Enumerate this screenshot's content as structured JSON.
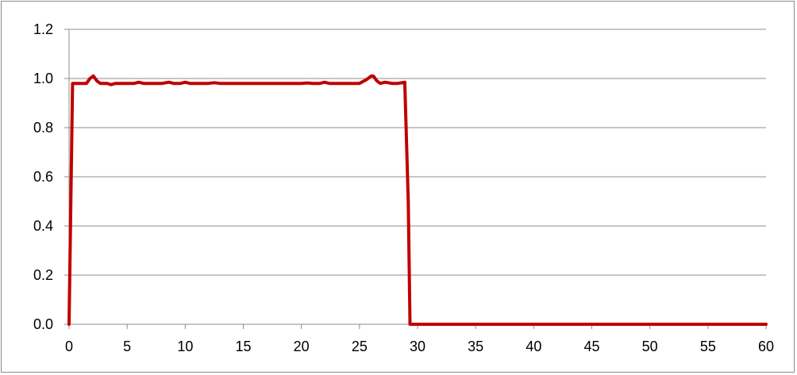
{
  "chart_data": {
    "type": "line",
    "title": "",
    "xlabel": "",
    "ylabel": "",
    "xlim": [
      0,
      60
    ],
    "ylim": [
      0,
      1.2
    ],
    "x_ticks": [
      "0",
      "5",
      "10",
      "15",
      "20",
      "25",
      "30",
      "35",
      "40",
      "45",
      "50",
      "55",
      "60"
    ],
    "y_ticks": [
      "0.0",
      "0.2",
      "0.4",
      "0.6",
      "0.8",
      "1.0",
      "1.2"
    ],
    "grid": "horizontal",
    "legend": "none",
    "line_color": "#c00000",
    "series": [
      {
        "x": [
          0,
          0.3,
          0.6,
          1.0,
          1.5,
          1.8,
          2.1,
          2.4,
          2.7,
          3.0,
          3.3,
          3.6,
          4.0,
          5.0,
          5.6,
          6.0,
          6.4,
          7.0,
          8.0,
          8.6,
          9.0,
          9.6,
          10.0,
          10.4,
          11.0,
          12.0,
          12.5,
          13.0,
          14.0,
          15.0,
          16.0,
          17.0,
          18.0,
          19.0,
          20.0,
          20.5,
          21.0,
          21.6,
          22.0,
          22.4,
          23.0,
          24.0,
          25.0,
          25.6,
          26.0,
          26.2,
          26.5,
          26.8,
          27.2,
          27.8,
          28.3,
          28.9,
          29.2,
          29.35,
          29.5,
          30.0,
          35.0,
          40.0,
          45.0,
          50.0,
          55.0,
          60.0
        ],
        "y": [
          0.0,
          0.98,
          0.98,
          0.98,
          0.98,
          1.0,
          1.01,
          0.99,
          0.98,
          0.98,
          0.98,
          0.975,
          0.98,
          0.98,
          0.98,
          0.985,
          0.98,
          0.98,
          0.98,
          0.985,
          0.98,
          0.98,
          0.985,
          0.98,
          0.98,
          0.98,
          0.983,
          0.98,
          0.98,
          0.98,
          0.98,
          0.98,
          0.98,
          0.98,
          0.98,
          0.982,
          0.98,
          0.98,
          0.985,
          0.98,
          0.98,
          0.98,
          0.98,
          0.995,
          1.01,
          1.01,
          0.99,
          0.98,
          0.985,
          0.98,
          0.98,
          0.985,
          0.5,
          0.0,
          0.0,
          0.0,
          0.0,
          0.0,
          0.0,
          0.0,
          0.0,
          0.0
        ]
      }
    ]
  }
}
